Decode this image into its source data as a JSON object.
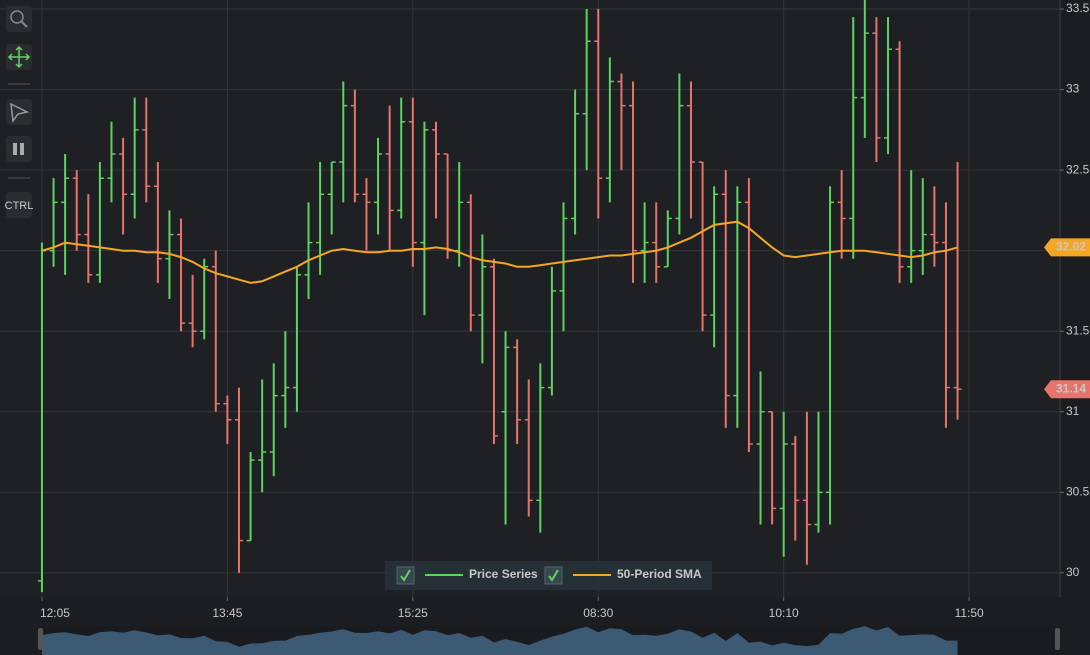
{
  "chart_data": {
    "type": "ohlc",
    "x": [
      0,
      1,
      2,
      3,
      4,
      5,
      6,
      7,
      8,
      9,
      10,
      11,
      12,
      13,
      14,
      15,
      16,
      17,
      18,
      19,
      20,
      21,
      22,
      23,
      24,
      25,
      26,
      27,
      28,
      29,
      30,
      31,
      32,
      33,
      34,
      35,
      36,
      37,
      38,
      39,
      40,
      41,
      42,
      43,
      44,
      45,
      46,
      47,
      48,
      49,
      50,
      51,
      52,
      53,
      54,
      55,
      56,
      57,
      58,
      59,
      60,
      61,
      62,
      63,
      64,
      65,
      66,
      67,
      68,
      69,
      70,
      71,
      72,
      73,
      74,
      75,
      76,
      77,
      78,
      79
    ],
    "series": [
      {
        "name": "Price Series",
        "color": "#5fd35f",
        "up_color": "#5fd35f",
        "down_color": "#e8736b",
        "open": [
          29.95,
          32.0,
          32.3,
          32.45,
          32.1,
          31.85,
          32.45,
          32.6,
          32.35,
          32.75,
          32.4,
          31.95,
          32.1,
          31.55,
          31.5,
          31.9,
          31.05,
          30.95,
          30.2,
          30.7,
          30.75,
          31.1,
          31.15,
          31.85,
          32.05,
          32.35,
          32.55,
          32.9,
          32.35,
          32.3,
          32.6,
          32.25,
          32.8,
          32.05,
          32.75,
          32.6,
          32.0,
          32.3,
          31.6,
          31.9,
          31.0,
          31.4,
          30.95,
          30.45,
          31.15,
          31.75,
          32.2,
          32.85,
          33.3,
          32.45,
          33.05,
          32.9,
          32.0,
          32.05,
          31.9,
          32.2,
          32.9,
          32.55,
          31.6,
          32.35,
          31.1,
          32.3,
          30.8,
          31.0,
          30.4,
          30.8,
          30.45,
          30.3,
          30.5,
          32.3,
          32.2,
          32.95,
          33.35,
          32.7,
          33.25,
          31.9,
          32.0,
          32.1,
          32.05,
          31.15
        ],
        "high": [
          32.05,
          32.45,
          32.6,
          32.5,
          32.35,
          32.55,
          32.8,
          32.7,
          32.95,
          32.95,
          32.55,
          32.25,
          32.2,
          31.85,
          31.95,
          32.0,
          31.1,
          31.15,
          30.75,
          31.2,
          31.3,
          31.5,
          31.9,
          32.3,
          32.55,
          32.55,
          33.05,
          33.0,
          32.45,
          32.7,
          32.9,
          32.95,
          32.95,
          32.8,
          32.8,
          32.6,
          32.55,
          32.35,
          32.1,
          31.95,
          31.5,
          31.45,
          31.2,
          31.3,
          31.9,
          32.3,
          33.0,
          33.5,
          33.5,
          33.2,
          33.1,
          33.05,
          32.3,
          32.3,
          32.25,
          33.1,
          33.05,
          32.55,
          32.4,
          32.5,
          32.4,
          32.45,
          31.25,
          31.0,
          31.0,
          30.85,
          31.0,
          31.0,
          32.4,
          32.5,
          33.45,
          33.6,
          33.45,
          33.45,
          33.3,
          32.5,
          32.45,
          32.4,
          32.3,
          32.55
        ],
        "low": [
          29.88,
          31.9,
          31.85,
          32.0,
          31.8,
          31.8,
          32.3,
          32.1,
          32.2,
          32.3,
          31.8,
          31.7,
          31.5,
          31.4,
          31.45,
          31.0,
          30.8,
          30.0,
          30.2,
          30.5,
          30.6,
          30.9,
          31.0,
          31.7,
          31.85,
          32.1,
          32.3,
          32.3,
          32.0,
          32.1,
          32.0,
          32.2,
          31.9,
          31.6,
          32.2,
          31.95,
          31.9,
          31.5,
          31.3,
          30.8,
          30.3,
          30.8,
          30.35,
          30.25,
          31.1,
          31.5,
          32.1,
          32.5,
          32.2,
          32.3,
          32.5,
          31.8,
          31.8,
          31.8,
          31.9,
          32.1,
          32.2,
          31.5,
          31.4,
          30.9,
          30.9,
          30.75,
          30.3,
          30.3,
          30.1,
          30.2,
          30.05,
          30.25,
          30.3,
          31.95,
          31.95,
          32.7,
          32.55,
          32.6,
          31.8,
          31.8,
          31.85,
          31.9,
          30.9,
          30.95
        ],
        "close": [
          32.0,
          32.3,
          32.45,
          32.1,
          31.85,
          32.45,
          32.6,
          32.35,
          32.75,
          32.4,
          31.95,
          32.1,
          31.55,
          31.5,
          31.9,
          31.05,
          30.95,
          30.2,
          30.7,
          30.75,
          31.1,
          31.15,
          31.85,
          32.05,
          32.35,
          32.55,
          32.9,
          32.35,
          32.3,
          32.6,
          32.25,
          32.8,
          32.05,
          32.75,
          32.6,
          32.0,
          32.3,
          31.6,
          31.9,
          30.85,
          31.4,
          30.95,
          30.45,
          31.15,
          31.75,
          32.2,
          32.85,
          33.3,
          32.45,
          33.05,
          32.9,
          32.0,
          32.05,
          31.9,
          32.2,
          32.9,
          32.55,
          31.6,
          32.35,
          31.1,
          32.3,
          30.8,
          31.0,
          30.4,
          30.8,
          30.45,
          30.3,
          30.5,
          32.3,
          32.2,
          32.95,
          33.35,
          32.7,
          33.25,
          31.9,
          32.0,
          32.1,
          32.05,
          31.15,
          31.14
        ]
      },
      {
        "name": "50-Period SMA",
        "color": "#f5a623",
        "values": [
          32.0,
          32.02,
          32.05,
          32.04,
          32.03,
          32.02,
          32.01,
          32.0,
          32.0,
          31.99,
          31.99,
          31.98,
          31.96,
          31.93,
          31.89,
          31.86,
          31.84,
          31.82,
          31.8,
          31.81,
          31.84,
          31.87,
          31.9,
          31.94,
          31.97,
          32.0,
          32.01,
          32.0,
          31.99,
          31.99,
          32.0,
          32.0,
          32.01,
          32.01,
          32.02,
          32.01,
          31.99,
          31.96,
          31.94,
          31.93,
          31.92,
          31.9,
          31.9,
          31.91,
          31.92,
          31.93,
          31.94,
          31.95,
          31.96,
          31.97,
          31.97,
          31.98,
          31.99,
          32.0,
          32.02,
          32.05,
          32.08,
          32.12,
          32.16,
          32.17,
          32.18,
          32.14,
          32.08,
          32.02,
          31.97,
          31.96,
          31.97,
          31.98,
          31.99,
          32.0,
          32.0,
          32.0,
          31.99,
          31.98,
          31.97,
          31.96,
          31.97,
          31.99,
          32.0,
          32.02
        ]
      }
    ],
    "xlim": [
      -3.62,
      87.84
    ],
    "xticks": [
      {
        "value": 0,
        "label": "12:05"
      },
      {
        "value": 16,
        "label": "13:45"
      },
      {
        "value": 32,
        "label": "15:25"
      },
      {
        "value": 48,
        "label": "08:30"
      },
      {
        "value": 64,
        "label": "10:10"
      },
      {
        "value": 80,
        "label": "11:50"
      }
    ],
    "ylim": [
      29.85,
      33.556
    ],
    "yticks": [
      30,
      30.5,
      31,
      31.5,
      32,
      32.5,
      33,
      33.5
    ],
    "grid": true
  },
  "toolbar": {
    "ctrl": "CTRL"
  }
}
